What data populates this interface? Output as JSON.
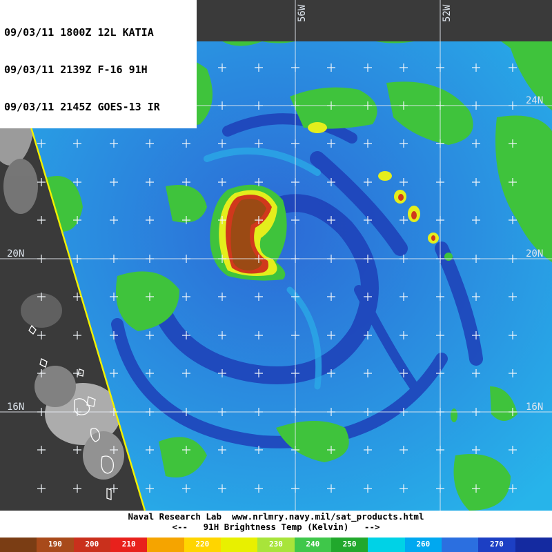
{
  "header": {
    "lines": [
      "09/03/11 1800Z 12L KATIA",
      "09/03/11 2139Z F-16 91H",
      "09/03/11 2145Z GOES-13 IR"
    ]
  },
  "map": {
    "lat_labels": [
      "24N",
      "20N",
      "16N"
    ],
    "lon_labels": [
      "56W",
      "52W"
    ]
  },
  "footer": {
    "credit": "Naval Research Lab  www.nrlmry.navy.mil/sat_products.html",
    "legend_title": "<--   91H Brightness Temp (Kelvin)   -->"
  },
  "colorbar": {
    "segments": [
      {
        "label": "",
        "color": "#7a3d14"
      },
      {
        "label": "190",
        "color": "#a84a1a"
      },
      {
        "label": "200",
        "color": "#c9301c"
      },
      {
        "label": "210",
        "color": "#e8211c"
      },
      {
        "label": "",
        "color": "#f5a400"
      },
      {
        "label": "220",
        "color": "#ffd500"
      },
      {
        "label": "",
        "color": "#e8f000"
      },
      {
        "label": "230",
        "color": "#a8e43a"
      },
      {
        "label": "240",
        "color": "#3fc74a"
      },
      {
        "label": "250",
        "color": "#21a82c"
      },
      {
        "label": "",
        "color": "#00d2e6"
      },
      {
        "label": "260",
        "color": "#00a8f0"
      },
      {
        "label": "",
        "color": "#2b6fe0"
      },
      {
        "label": "270",
        "color": "#1c3fc4"
      },
      {
        "label": "",
        "color": "#142aa0"
      }
    ]
  },
  "colors": {
    "ocean_warm": "#29b6e8",
    "ocean_cool": "#2b68d8",
    "ocean_deep": "#1c3db8",
    "green": "#3fc33c",
    "yellow": "#e4ee1c",
    "red": "#d0381c",
    "brown": "#9b4a14",
    "ir_bg": "#3c3c3c",
    "swath_edge": "#f0f000"
  }
}
